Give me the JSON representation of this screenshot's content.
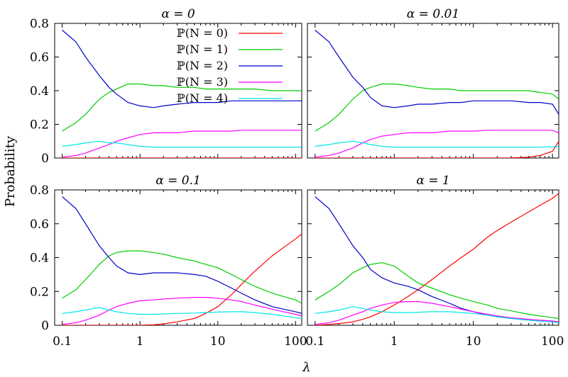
{
  "chart_data": [
    {
      "type": "line",
      "title": "α = 0",
      "x": [
        0.1,
        0.15,
        0.2,
        0.3,
        0.4,
        0.5,
        0.7,
        1,
        1.5,
        2,
        3,
        5,
        7,
        10,
        15,
        20,
        30,
        50,
        70,
        100,
        120
      ],
      "series": [
        {
          "name": "ℙ(N = 0)",
          "color": "#ff0000",
          "values": [
            0,
            0,
            0,
            0,
            0,
            0,
            0,
            0,
            0,
            0,
            0,
            0,
            0,
            0,
            0,
            0,
            0,
            0,
            0,
            0,
            0
          ]
        },
        {
          "name": "ℙ(N = 1)",
          "color": "#00cc00",
          "values": [
            0.16,
            0.21,
            0.26,
            0.35,
            0.39,
            0.41,
            0.44,
            0.44,
            0.43,
            0.43,
            0.42,
            0.42,
            0.41,
            0.41,
            0.41,
            0.41,
            0.41,
            0.4,
            0.4,
            0.4,
            0.4
          ]
        },
        {
          "name": "ℙ(N = 2)",
          "color": "#0000cc",
          "values": [
            0.76,
            0.69,
            0.6,
            0.49,
            0.42,
            0.38,
            0.33,
            0.31,
            0.3,
            0.31,
            0.32,
            0.33,
            0.33,
            0.33,
            0.34,
            0.34,
            0.34,
            0.34,
            0.34,
            0.34,
            0.34
          ]
        },
        {
          "name": "ℙ(N = 3)",
          "color": "#ff00ff",
          "values": [
            0.005,
            0.015,
            0.03,
            0.06,
            0.08,
            0.1,
            0.12,
            0.14,
            0.15,
            0.15,
            0.15,
            0.16,
            0.16,
            0.16,
            0.16,
            0.165,
            0.165,
            0.165,
            0.165,
            0.165,
            0.165
          ]
        },
        {
          "name": "ℙ(N = 4)",
          "color": "#00e5e5",
          "values": [
            0.07,
            0.08,
            0.09,
            0.1,
            0.09,
            0.09,
            0.08,
            0.07,
            0.065,
            0.065,
            0.065,
            0.065,
            0.065,
            0.065,
            0.065,
            0.065,
            0.065,
            0.065,
            0.065,
            0.065,
            0.065
          ]
        }
      ],
      "xscale": "log",
      "xlim": [
        0.08,
        120
      ],
      "ylim": [
        0,
        0.8
      ],
      "xticks": [],
      "yticks": [
        "0",
        "0.2",
        "0.4",
        "0.6",
        "0.8"
      ],
      "legend_position": "top-right"
    },
    {
      "type": "line",
      "title": "α = 0.01",
      "x": [
        0.1,
        0.15,
        0.2,
        0.3,
        0.4,
        0.5,
        0.7,
        1,
        1.5,
        2,
        3,
        5,
        7,
        10,
        15,
        20,
        30,
        50,
        70,
        100,
        120
      ],
      "series": [
        {
          "name": "ℙ(N = 0)",
          "color": "#ff0000",
          "values": [
            0,
            0,
            0,
            0,
            0,
            0,
            0,
            0,
            0,
            0,
            0,
            0,
            0,
            0,
            0,
            0,
            0.001,
            0.005,
            0.015,
            0.04,
            0.1
          ]
        },
        {
          "name": "ℙ(N = 1)",
          "color": "#00cc00",
          "values": [
            0.16,
            0.21,
            0.26,
            0.35,
            0.4,
            0.42,
            0.44,
            0.44,
            0.43,
            0.42,
            0.41,
            0.41,
            0.4,
            0.4,
            0.4,
            0.4,
            0.4,
            0.4,
            0.39,
            0.38,
            0.35
          ]
        },
        {
          "name": "ℙ(N = 2)",
          "color": "#0000cc",
          "values": [
            0.76,
            0.69,
            0.6,
            0.48,
            0.42,
            0.36,
            0.31,
            0.3,
            0.31,
            0.32,
            0.32,
            0.33,
            0.33,
            0.34,
            0.34,
            0.34,
            0.34,
            0.33,
            0.33,
            0.32,
            0.26
          ]
        },
        {
          "name": "ℙ(N = 3)",
          "color": "#ff00ff",
          "values": [
            0.005,
            0.015,
            0.03,
            0.06,
            0.09,
            0.11,
            0.13,
            0.14,
            0.15,
            0.15,
            0.15,
            0.16,
            0.16,
            0.16,
            0.165,
            0.165,
            0.165,
            0.165,
            0.165,
            0.165,
            0.15
          ]
        },
        {
          "name": "ℙ(N = 4)",
          "color": "#00e5e5",
          "values": [
            0.07,
            0.08,
            0.09,
            0.1,
            0.09,
            0.08,
            0.07,
            0.065,
            0.065,
            0.065,
            0.065,
            0.065,
            0.065,
            0.065,
            0.065,
            0.065,
            0.065,
            0.065,
            0.065,
            0.067,
            0.07
          ]
        }
      ],
      "xscale": "log",
      "xlim": [
        0.08,
        120
      ],
      "ylim": [
        0,
        0.8
      ],
      "xticks": [],
      "yticks": [],
      "legend_position": "none"
    },
    {
      "type": "line",
      "title": "α = 0.1",
      "x": [
        0.1,
        0.15,
        0.2,
        0.3,
        0.4,
        0.5,
        0.7,
        1,
        1.5,
        2,
        3,
        5,
        7,
        10,
        15,
        20,
        30,
        50,
        70,
        100,
        120
      ],
      "series": [
        {
          "name": "ℙ(N = 0)",
          "color": "#ff0000",
          "values": [
            0,
            0,
            0,
            0,
            0,
            0,
            0,
            0,
            0.003,
            0.008,
            0.02,
            0.04,
            0.07,
            0.11,
            0.18,
            0.24,
            0.32,
            0.41,
            0.46,
            0.51,
            0.54
          ]
        },
        {
          "name": "ℙ(N = 1)",
          "color": "#00cc00",
          "values": [
            0.16,
            0.21,
            0.27,
            0.36,
            0.41,
            0.43,
            0.44,
            0.44,
            0.43,
            0.42,
            0.4,
            0.38,
            0.36,
            0.34,
            0.3,
            0.27,
            0.23,
            0.19,
            0.17,
            0.15,
            0.13
          ]
        },
        {
          "name": "ℙ(N = 2)",
          "color": "#0000cc",
          "values": [
            0.76,
            0.69,
            0.6,
            0.47,
            0.4,
            0.35,
            0.31,
            0.3,
            0.31,
            0.31,
            0.31,
            0.3,
            0.29,
            0.26,
            0.22,
            0.19,
            0.15,
            0.11,
            0.095,
            0.08,
            0.07
          ]
        },
        {
          "name": "ℙ(N = 3)",
          "color": "#ff00ff",
          "values": [
            0.005,
            0.015,
            0.03,
            0.06,
            0.09,
            0.11,
            0.13,
            0.145,
            0.15,
            0.155,
            0.16,
            0.165,
            0.165,
            0.16,
            0.15,
            0.14,
            0.12,
            0.095,
            0.08,
            0.065,
            0.055
          ]
        },
        {
          "name": "ℙ(N = 4)",
          "color": "#00e5e5",
          "values": [
            0.07,
            0.08,
            0.09,
            0.105,
            0.09,
            0.08,
            0.07,
            0.065,
            0.065,
            0.067,
            0.07,
            0.072,
            0.075,
            0.078,
            0.08,
            0.08,
            0.075,
            0.065,
            0.055,
            0.045,
            0.04
          ]
        }
      ],
      "xscale": "log",
      "xlim": [
        0.08,
        120
      ],
      "ylim": [
        0,
        0.8
      ],
      "xticks": [
        "0.1",
        "1",
        "10",
        "100"
      ],
      "yticks": [
        "0",
        "0.2",
        "0.4",
        "0.6",
        "0.8"
      ],
      "legend_position": "none"
    },
    {
      "type": "line",
      "title": "α = 1",
      "x": [
        0.1,
        0.15,
        0.2,
        0.3,
        0.4,
        0.5,
        0.7,
        1,
        1.5,
        2,
        3,
        5,
        7,
        10,
        15,
        20,
        30,
        50,
        70,
        100,
        120
      ],
      "series": [
        {
          "name": "ℙ(N = 0)",
          "color": "#ff0000",
          "values": [
            0,
            0.005,
            0.01,
            0.02,
            0.035,
            0.05,
            0.08,
            0.12,
            0.17,
            0.21,
            0.27,
            0.35,
            0.4,
            0.45,
            0.52,
            0.56,
            0.61,
            0.67,
            0.71,
            0.75,
            0.78
          ]
        },
        {
          "name": "ℙ(N = 1)",
          "color": "#00cc00",
          "values": [
            0.15,
            0.2,
            0.24,
            0.31,
            0.34,
            0.36,
            0.37,
            0.35,
            0.29,
            0.25,
            0.22,
            0.18,
            0.16,
            0.14,
            0.12,
            0.1,
            0.085,
            0.065,
            0.055,
            0.045,
            0.04
          ]
        },
        {
          "name": "ℙ(N = 2)",
          "color": "#0000cc",
          "values": [
            0.76,
            0.69,
            0.6,
            0.47,
            0.4,
            0.33,
            0.28,
            0.25,
            0.23,
            0.21,
            0.17,
            0.13,
            0.1,
            0.08,
            0.06,
            0.05,
            0.04,
            0.03,
            0.025,
            0.02,
            0.015
          ]
        },
        {
          "name": "ℙ(N = 3)",
          "color": "#ff00ff",
          "values": [
            0.005,
            0.015,
            0.03,
            0.06,
            0.08,
            0.1,
            0.12,
            0.135,
            0.14,
            0.14,
            0.13,
            0.11,
            0.095,
            0.08,
            0.065,
            0.055,
            0.045,
            0.035,
            0.03,
            0.025,
            0.02
          ]
        },
        {
          "name": "ℙ(N = 4)",
          "color": "#00e5e5",
          "values": [
            0.07,
            0.08,
            0.09,
            0.11,
            0.1,
            0.09,
            0.08,
            0.075,
            0.075,
            0.077,
            0.08,
            0.08,
            0.075,
            0.07,
            0.06,
            0.05,
            0.04,
            0.03,
            0.025,
            0.02,
            0.015
          ]
        }
      ],
      "xscale": "log",
      "xlim": [
        0.08,
        120
      ],
      "ylim": [
        0,
        0.8
      ],
      "xticks": [
        "0.1",
        "1",
        "10",
        "100"
      ],
      "yticks": [],
      "legend_position": "none"
    }
  ],
  "ylabel": "Probability",
  "xlabel": "λ"
}
